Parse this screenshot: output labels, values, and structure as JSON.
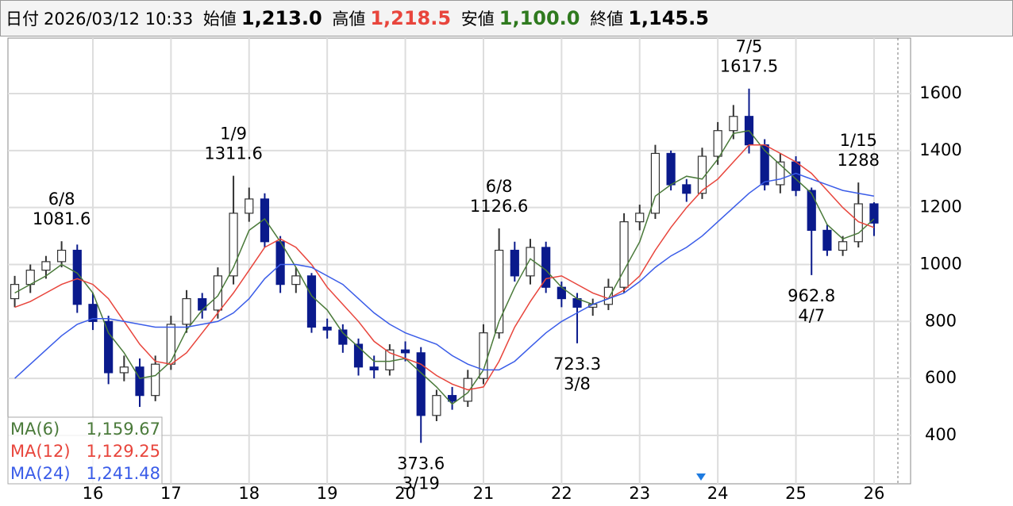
{
  "header": {
    "date_label": "日付",
    "datetime": "2026/03/12 10:33",
    "open_label": "始値",
    "open": "1,213.0",
    "high_label": "高値",
    "high": "1,218.5",
    "low_label": "安値",
    "low": "1,100.0",
    "close_label": "終値",
    "close": "1,145.5"
  },
  "chart_data": {
    "type": "candlestick",
    "x": [
      15.0,
      15.2,
      15.4,
      15.6,
      15.8,
      16.0,
      16.2,
      16.4,
      16.6,
      16.8,
      17.0,
      17.2,
      17.4,
      17.6,
      17.8,
      18.0,
      18.2,
      18.4,
      18.6,
      18.8,
      19.0,
      19.2,
      19.4,
      19.6,
      19.8,
      20.0,
      20.2,
      20.4,
      20.6,
      20.8,
      21.0,
      21.2,
      21.4,
      21.6,
      21.8,
      22.0,
      22.2,
      22.4,
      22.6,
      22.8,
      23.0,
      23.2,
      23.4,
      23.6,
      23.8,
      24.0,
      24.2,
      24.4,
      24.6,
      24.8,
      25.0,
      25.2,
      25.4,
      25.6,
      25.8,
      26.0
    ],
    "open": [
      880,
      930,
      980,
      1010,
      1050,
      860,
      800,
      620,
      640,
      540,
      650,
      790,
      880,
      840,
      960,
      1180,
      1230,
      1080,
      930,
      960,
      780,
      770,
      720,
      640,
      630,
      700,
      690,
      470,
      540,
      520,
      600,
      760,
      1050,
      960,
      1060,
      920,
      880,
      850,
      860,
      920,
      1150,
      1180,
      1390,
      1280,
      1250,
      1380,
      1470,
      1520,
      1420,
      1280,
      1360,
      1260,
      1120,
      1050,
      1080,
      1213
    ],
    "high": [
      960,
      1000,
      1030,
      1081.6,
      1070,
      900,
      820,
      680,
      670,
      680,
      820,
      910,
      900,
      990,
      1311.6,
      1270,
      1250,
      1100,
      990,
      970,
      810,
      790,
      740,
      680,
      720,
      730,
      710,
      560,
      570,
      630,
      790,
      1126.6,
      1080,
      1090,
      1080,
      940,
      900,
      880,
      950,
      1180,
      1210,
      1420,
      1400,
      1300,
      1410,
      1500,
      1560,
      1617.5,
      1440,
      1390,
      1380,
      1270,
      1140,
      1100,
      1288,
      1218.5
    ],
    "low": [
      850,
      900,
      950,
      990,
      830,
      770,
      580,
      590,
      500,
      520,
      630,
      760,
      810,
      810,
      930,
      1150,
      1060,
      900,
      900,
      760,
      740,
      690,
      610,
      600,
      610,
      660,
      373.6,
      450,
      490,
      500,
      580,
      740,
      940,
      930,
      900,
      850,
      723.3,
      820,
      840,
      900,
      1120,
      1160,
      1260,
      1220,
      1230,
      1350,
      1440,
      1390,
      1260,
      1250,
      1240,
      962.8,
      1030,
      1030,
      1060,
      1100
    ],
    "close": [
      930,
      980,
      1010,
      1050,
      860,
      800,
      620,
      640,
      540,
      650,
      790,
      880,
      840,
      960,
      1180,
      1230,
      1080,
      930,
      960,
      780,
      770,
      720,
      640,
      630,
      700,
      690,
      470,
      540,
      520,
      600,
      760,
      1050,
      960,
      1060,
      920,
      880,
      850,
      860,
      920,
      1150,
      1180,
      1390,
      1280,
      1250,
      1380,
      1470,
      1520,
      1420,
      1280,
      1360,
      1260,
      1120,
      1050,
      1080,
      1213,
      1145.5
    ],
    "up_color": "#ffffff",
    "down_color": "#0a1a8c",
    "series": [
      {
        "name": "MA(6)",
        "color": "#4a7a3a",
        "legend_value": "1,159.67",
        "values": [
          900,
          930,
          960,
          1000,
          970,
          900,
          760,
          690,
          600,
          610,
          660,
          770,
          840,
          890,
          990,
          1120,
          1160,
          1080,
          990,
          890,
          840,
          760,
          710,
          660,
          660,
          670,
          620,
          570,
          510,
          550,
          630,
          800,
          920,
          1020,
          980,
          920,
          880,
          860,
          880,
          980,
          1080,
          1240,
          1280,
          1310,
          1300,
          1370,
          1460,
          1470,
          1400,
          1350,
          1300,
          1250,
          1140,
          1090,
          1110,
          1160
        ]
      },
      {
        "name": "MA(12)",
        "color": "#e8453c",
        "legend_value": "1,129.25",
        "values": [
          850,
          870,
          900,
          930,
          950,
          930,
          880,
          800,
          720,
          660,
          650,
          690,
          760,
          830,
          900,
          980,
          1060,
          1090,
          1060,
          1000,
          920,
          860,
          800,
          730,
          690,
          670,
          650,
          610,
          580,
          560,
          570,
          660,
          780,
          870,
          950,
          960,
          930,
          900,
          880,
          910,
          960,
          1050,
          1130,
          1200,
          1260,
          1300,
          1360,
          1420,
          1420,
          1390,
          1360,
          1320,
          1260,
          1200,
          1150,
          1130
        ]
      },
      {
        "name": "MA(24)",
        "color": "#3a5ce8",
        "legend_value": "1,241.48",
        "values": [
          600,
          650,
          700,
          750,
          790,
          810,
          810,
          800,
          790,
          780,
          780,
          780,
          790,
          800,
          830,
          880,
          950,
          1000,
          1000,
          990,
          960,
          930,
          880,
          830,
          790,
          760,
          740,
          720,
          680,
          650,
          630,
          630,
          660,
          710,
          760,
          800,
          830,
          860,
          880,
          900,
          940,
          990,
          1030,
          1060,
          1100,
          1150,
          1200,
          1250,
          1290,
          1300,
          1320,
          1300,
          1280,
          1260,
          1250,
          1240
        ]
      }
    ],
    "annotations": [
      {
        "date": "6/8",
        "value": 1081.6,
        "side": "above"
      },
      {
        "date": "1/9",
        "value": 1311.6,
        "side": "above"
      },
      {
        "date": "3/19",
        "value": 373.6,
        "side": "below"
      },
      {
        "date": "6/8",
        "value": 1126.6,
        "side": "above"
      },
      {
        "date": "3/8",
        "value": 723.3,
        "side": "below"
      },
      {
        "date": "7/5",
        "value": 1617.5,
        "side": "above"
      },
      {
        "date": "4/7",
        "value": 962.8,
        "side": "below"
      },
      {
        "date": "1/15",
        "value": 1288.0,
        "side": "above"
      }
    ],
    "xlim": [
      14.913,
      26.468
    ],
    "xticks": [
      16,
      17,
      18,
      19,
      20,
      21,
      22,
      23,
      24,
      25,
      26
    ],
    "ylim": [
      230,
      1795
    ],
    "yticks": [
      400,
      600,
      800,
      1000,
      1200,
      1400,
      1600
    ],
    "grid": true
  }
}
